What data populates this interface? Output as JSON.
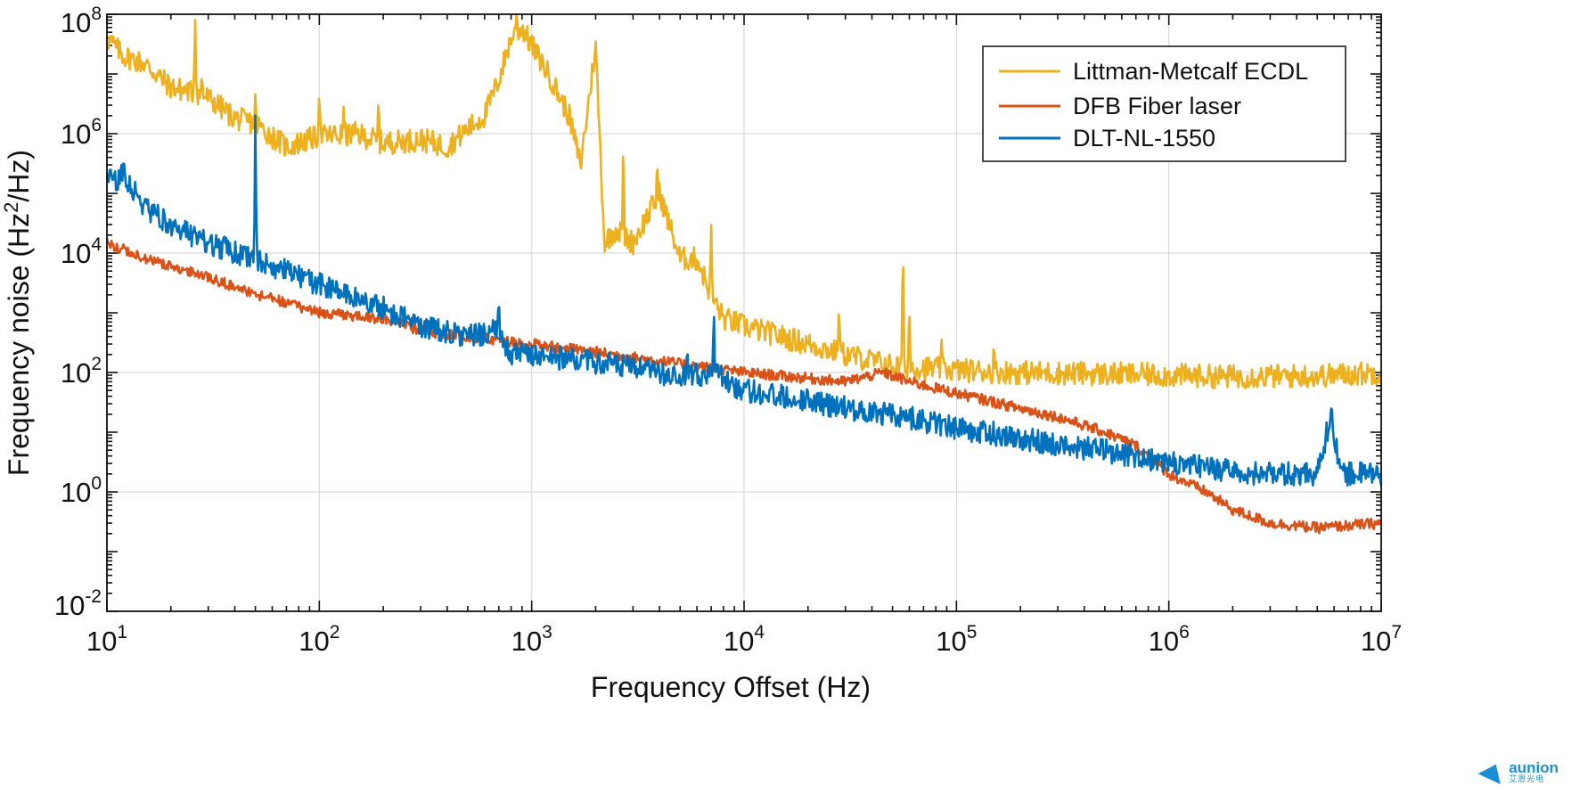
{
  "chart_data": {
    "type": "line",
    "xlabel": "Frequency Offset (Hz)",
    "ylabel": "Frequency noise (Hz²/Hz)",
    "ylabel_parts": {
      "pre": "Frequency noise (Hz",
      "sup": "2",
      "post": "/Hz)"
    },
    "x_scale": "log",
    "y_scale": "log",
    "xlim": [
      10,
      10000000
    ],
    "ylim": [
      0.01,
      100000000
    ],
    "grid": true,
    "legend_position": "top-right",
    "x_ticks": [
      {
        "base": "10",
        "exp": "1"
      },
      {
        "base": "10",
        "exp": "2"
      },
      {
        "base": "10",
        "exp": "3"
      },
      {
        "base": "10",
        "exp": "4"
      },
      {
        "base": "10",
        "exp": "5"
      },
      {
        "base": "10",
        "exp": "6"
      },
      {
        "base": "10",
        "exp": "7"
      }
    ],
    "y_ticks": [
      {
        "base": "10",
        "exp": "-2"
      },
      {
        "base": "10",
        "exp": "0"
      },
      {
        "base": "10",
        "exp": "2"
      },
      {
        "base": "10",
        "exp": "4"
      },
      {
        "base": "10",
        "exp": "6"
      },
      {
        "base": "10",
        "exp": "8"
      }
    ],
    "series": [
      {
        "name": "Littman-Metcalf ECDL",
        "color": "#EDB120",
        "points": [
          [
            10,
            40000000
          ],
          [
            12,
            20000000
          ],
          [
            15,
            15000000
          ],
          [
            20,
            6000000
          ],
          [
            25,
            5000000
          ],
          [
            30,
            4000000
          ],
          [
            40,
            1800000
          ],
          [
            50,
            1500000
          ],
          [
            60,
            900000
          ],
          [
            70,
            600000
          ],
          [
            80,
            700000
          ],
          [
            100,
            900000
          ],
          [
            150,
            1000000
          ],
          [
            200,
            700000
          ],
          [
            300,
            800000
          ],
          [
            400,
            600000
          ],
          [
            500,
            1200000
          ],
          [
            600,
            2000000
          ],
          [
            700,
            8000000
          ],
          [
            800,
            40000000
          ],
          [
            900,
            60000000
          ],
          [
            1000,
            30000000
          ],
          [
            1200,
            10000000
          ],
          [
            1500,
            2000000
          ],
          [
            1700,
            300000
          ],
          [
            2000,
            30000000
          ],
          [
            2200,
            15000
          ],
          [
            2500,
            25000
          ],
          [
            3000,
            15000
          ],
          [
            4000,
            100000
          ],
          [
            5000,
            8000
          ],
          [
            6000,
            8000
          ],
          [
            7000,
            2000
          ],
          [
            8000,
            800
          ],
          [
            10000,
            600
          ],
          [
            15000,
            400
          ],
          [
            20000,
            300
          ],
          [
            30000,
            200
          ],
          [
            50000,
            130
          ],
          [
            100000,
            110
          ],
          [
            200000,
            100
          ],
          [
            500000,
            95
          ],
          [
            1000000,
            90
          ],
          [
            2000000,
            85
          ],
          [
            5000000,
            88
          ],
          [
            10000000,
            100
          ]
        ],
        "spikes": [
          [
            26,
            120000000
          ],
          [
            28,
            10000000
          ],
          [
            50,
            5000000
          ],
          [
            100,
            6000000
          ],
          [
            130,
            3000000
          ],
          [
            190,
            5000000
          ],
          [
            850,
            130000000
          ],
          [
            2700,
            1000000
          ],
          [
            3900,
            400000
          ],
          [
            7000,
            40000
          ],
          [
            28000,
            1500
          ],
          [
            56000,
            30000
          ],
          [
            60000,
            2000
          ],
          [
            85000,
            400
          ],
          [
            150000,
            350
          ]
        ]
      },
      {
        "name": "DFB Fiber laser",
        "color": "#D95319",
        "points": [
          [
            10,
            15000
          ],
          [
            15,
            8000
          ],
          [
            20,
            6000
          ],
          [
            30,
            4000
          ],
          [
            50,
            2000
          ],
          [
            70,
            1500
          ],
          [
            100,
            1000
          ],
          [
            200,
            800
          ],
          [
            300,
            500
          ],
          [
            500,
            400
          ],
          [
            1000,
            300
          ],
          [
            2000,
            220
          ],
          [
            3000,
            180
          ],
          [
            5000,
            140
          ],
          [
            10000,
            100
          ],
          [
            20000,
            80
          ],
          [
            30000,
            70
          ],
          [
            45000,
            100
          ],
          [
            60000,
            70
          ],
          [
            100000,
            45
          ],
          [
            200000,
            25
          ],
          [
            300000,
            18
          ],
          [
            500000,
            10
          ],
          [
            700000,
            6
          ],
          [
            1000000,
            2
          ],
          [
            1500000,
            1
          ],
          [
            2000000,
            0.5
          ],
          [
            3000000,
            0.3
          ],
          [
            5000000,
            0.25
          ],
          [
            10000000,
            0.3
          ]
        ],
        "spikes": []
      },
      {
        "name": "DLT-NL-1550",
        "color": "#0072BD",
        "points": [
          [
            10,
            150000
          ],
          [
            12,
            200000
          ],
          [
            15,
            60000
          ],
          [
            20,
            30000
          ],
          [
            30,
            15000
          ],
          [
            50,
            8000
          ],
          [
            70,
            5000
          ],
          [
            100,
            3000
          ],
          [
            200,
            1200
          ],
          [
            300,
            600
          ],
          [
            500,
            400
          ],
          [
            700,
            500
          ],
          [
            800,
            200
          ],
          [
            1000,
            200
          ],
          [
            2000,
            150
          ],
          [
            3000,
            120
          ],
          [
            5000,
            80
          ],
          [
            7000,
            100
          ],
          [
            10000,
            50
          ],
          [
            20000,
            35
          ],
          [
            30000,
            25
          ],
          [
            50000,
            20
          ],
          [
            100000,
            12
          ],
          [
            200000,
            8
          ],
          [
            300000,
            6
          ],
          [
            500000,
            5
          ],
          [
            1000000,
            3
          ],
          [
            2000000,
            2.2
          ],
          [
            3000000,
            2
          ],
          [
            5000000,
            2
          ],
          [
            5800000,
            20
          ],
          [
            6500000,
            2
          ],
          [
            10000000,
            2
          ]
        ],
        "spikes": [
          [
            12,
            400000
          ],
          [
            50,
            3000000
          ],
          [
            700,
            2000
          ],
          [
            1900,
            200
          ],
          [
            5400,
            300
          ],
          [
            7200,
            1500
          ]
        ]
      }
    ]
  },
  "logo": {
    "name": "aunion",
    "sub": "艾恩光电"
  }
}
